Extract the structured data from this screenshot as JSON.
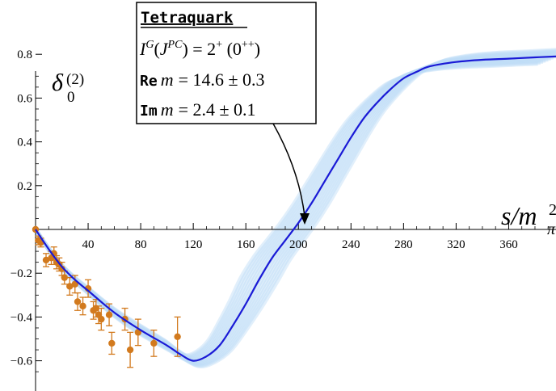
{
  "chart_data": {
    "type": "line",
    "ylabel": "δ0(2)",
    "ylabel_parts": {
      "base": "δ",
      "sub": "0",
      "sup": "(2)"
    },
    "xlabel": "s/mπ2",
    "xlabel_parts": {
      "base": "s/m",
      "sub": "π",
      "sup": "2"
    },
    "xlim": [
      0,
      396
    ],
    "ylim": [
      -0.68,
      0.86
    ],
    "xticks": [
      40,
      80,
      120,
      160,
      200,
      240,
      280,
      320,
      360
    ],
    "yticks": [
      -0.6,
      -0.4,
      -0.2,
      0.2,
      0.4,
      0.6,
      0.8
    ],
    "ytick_labels": [
      "−0.6",
      "−0.4",
      "−0.2",
      "0.2",
      "0.4",
      "0.6",
      "0.8"
    ],
    "grid": false,
    "colors": {
      "curve": "#1a1ad6",
      "band": "#bcdcf7",
      "data": "#d27a1e"
    },
    "series": [
      {
        "role": "central-fit",
        "x": [
          0,
          10,
          20,
          30,
          40,
          60,
          80,
          100,
          110,
          120,
          130,
          140,
          150,
          160,
          170,
          180,
          190,
          200,
          210,
          220,
          230,
          240,
          250,
          260,
          270,
          280,
          290,
          300,
          320,
          340,
          360,
          380,
          396
        ],
        "y": [
          0.0,
          -0.09,
          -0.17,
          -0.23,
          -0.28,
          -0.38,
          -0.46,
          -0.53,
          -0.57,
          -0.6,
          -0.58,
          -0.53,
          -0.44,
          -0.34,
          -0.23,
          -0.13,
          -0.05,
          0.03,
          0.12,
          0.22,
          0.32,
          0.42,
          0.51,
          0.58,
          0.64,
          0.69,
          0.72,
          0.745,
          0.765,
          0.775,
          0.78,
          0.786,
          0.79
        ]
      },
      {
        "role": "data",
        "x": [
          0,
          2,
          4,
          8,
          12,
          14,
          16,
          18,
          20,
          22,
          26,
          30,
          32,
          36,
          40,
          44,
          46,
          48,
          50,
          56,
          58,
          68,
          72,
          78,
          90,
          108
        ],
        "y": [
          0.0,
          -0.05,
          -0.06,
          -0.14,
          -0.13,
          -0.11,
          -0.15,
          -0.16,
          -0.18,
          -0.22,
          -0.26,
          -0.25,
          -0.33,
          -0.35,
          -0.27,
          -0.37,
          -0.36,
          -0.39,
          -0.41,
          -0.39,
          -0.52,
          -0.41,
          -0.55,
          -0.47,
          -0.52,
          -0.49
        ],
        "yerr": [
          0.0,
          0.02,
          0.02,
          0.03,
          0.03,
          0.03,
          0.03,
          0.03,
          0.03,
          0.03,
          0.04,
          0.04,
          0.04,
          0.04,
          0.04,
          0.04,
          0.04,
          0.04,
          0.05,
          0.05,
          0.05,
          0.05,
          0.08,
          0.06,
          0.06,
          0.09
        ]
      }
    ],
    "annotation": {
      "title": "Tetraquark",
      "line1": "IG(JPC) = 2+ (0++)",
      "line1_parts": {
        "I": "I",
        "G": "G",
        "open": "(",
        "J": "J",
        "PC": "PC",
        "close": ")",
        "eq": " = 2",
        "plus": "+",
        "rest1": " (0",
        "pp": "++",
        "rest2": ")"
      },
      "line2_label": "Re",
      "line2_m": "m",
      "line2_value": "= 14.6 ± 0.3",
      "line3_label": "Im",
      "line3_m": "m",
      "line3_value": "= 2.4 ± 0.1",
      "points_to": {
        "x": 200,
        "y": 0.0
      }
    }
  }
}
